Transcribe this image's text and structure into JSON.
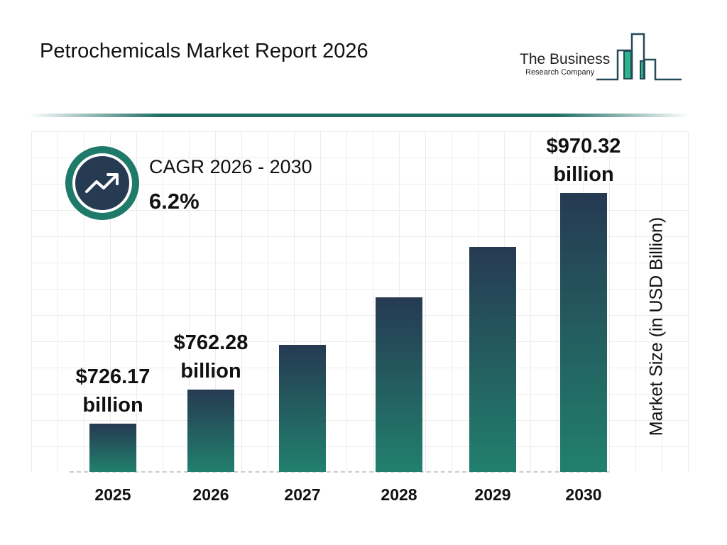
{
  "title": "Petrochemicals Market Report 2026",
  "logo": {
    "line1": "The Business",
    "line2": "Research Company"
  },
  "cagr": {
    "label": "CAGR 2026 - 2030",
    "value": "6.2%",
    "icon": "trend-up-arrow-icon"
  },
  "colors": {
    "bar_top": "#263a52",
    "bar_bottom": "#21806d",
    "accent": "#1f7a6a"
  },
  "chart_data": {
    "type": "bar",
    "categories": [
      "2025",
      "2026",
      "2027",
      "2028",
      "2029",
      "2030"
    ],
    "values": [
      726.17,
      762.28,
      809.5,
      859.7,
      913.0,
      970.32
    ],
    "data_labels": [
      {
        "index": 0,
        "value": "$726.17",
        "unit": "billion"
      },
      {
        "index": 1,
        "value": "$762.28",
        "unit": "billion"
      },
      {
        "index": 5,
        "value": "$970.32",
        "unit": "billion"
      }
    ],
    "ylabel": "Market Size (in USD Billion)",
    "grid": true
  }
}
